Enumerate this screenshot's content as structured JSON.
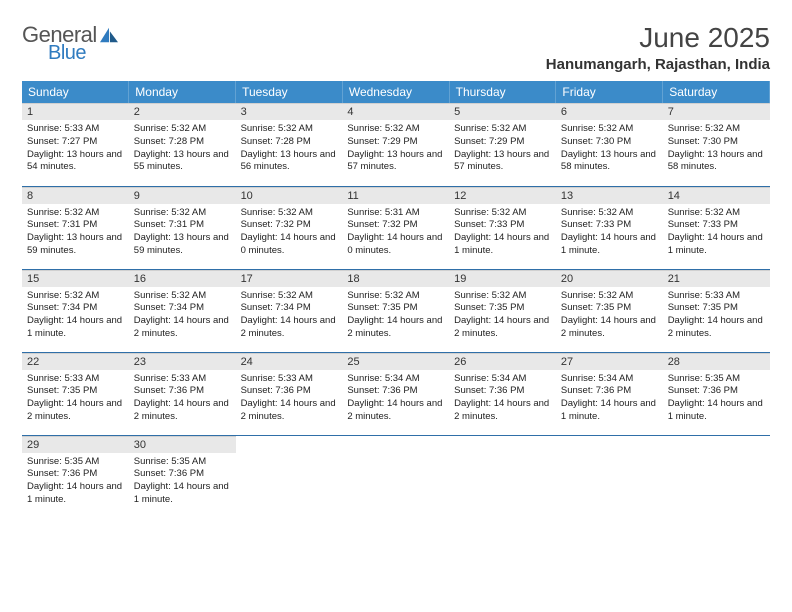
{
  "brand": {
    "word1": "General",
    "word2": "Blue"
  },
  "title": "June 2025",
  "location": "Hanumangarh, Rajasthan, India",
  "colors": {
    "header_bg": "#3b8bc9",
    "row_divider": "#2f6fa8",
    "daynum_bg": "#e8e8e8"
  },
  "weekdays": [
    "Sunday",
    "Monday",
    "Tuesday",
    "Wednesday",
    "Thursday",
    "Friday",
    "Saturday"
  ],
  "days": [
    {
      "n": 1,
      "sr": "5:33 AM",
      "ss": "7:27 PM",
      "dl": "13 hours and 54 minutes."
    },
    {
      "n": 2,
      "sr": "5:32 AM",
      "ss": "7:28 PM",
      "dl": "13 hours and 55 minutes."
    },
    {
      "n": 3,
      "sr": "5:32 AM",
      "ss": "7:28 PM",
      "dl": "13 hours and 56 minutes."
    },
    {
      "n": 4,
      "sr": "5:32 AM",
      "ss": "7:29 PM",
      "dl": "13 hours and 57 minutes."
    },
    {
      "n": 5,
      "sr": "5:32 AM",
      "ss": "7:29 PM",
      "dl": "13 hours and 57 minutes."
    },
    {
      "n": 6,
      "sr": "5:32 AM",
      "ss": "7:30 PM",
      "dl": "13 hours and 58 minutes."
    },
    {
      "n": 7,
      "sr": "5:32 AM",
      "ss": "7:30 PM",
      "dl": "13 hours and 58 minutes."
    },
    {
      "n": 8,
      "sr": "5:32 AM",
      "ss": "7:31 PM",
      "dl": "13 hours and 59 minutes."
    },
    {
      "n": 9,
      "sr": "5:32 AM",
      "ss": "7:31 PM",
      "dl": "13 hours and 59 minutes."
    },
    {
      "n": 10,
      "sr": "5:32 AM",
      "ss": "7:32 PM",
      "dl": "14 hours and 0 minutes."
    },
    {
      "n": 11,
      "sr": "5:31 AM",
      "ss": "7:32 PM",
      "dl": "14 hours and 0 minutes."
    },
    {
      "n": 12,
      "sr": "5:32 AM",
      "ss": "7:33 PM",
      "dl": "14 hours and 1 minute."
    },
    {
      "n": 13,
      "sr": "5:32 AM",
      "ss": "7:33 PM",
      "dl": "14 hours and 1 minute."
    },
    {
      "n": 14,
      "sr": "5:32 AM",
      "ss": "7:33 PM",
      "dl": "14 hours and 1 minute."
    },
    {
      "n": 15,
      "sr": "5:32 AM",
      "ss": "7:34 PM",
      "dl": "14 hours and 1 minute."
    },
    {
      "n": 16,
      "sr": "5:32 AM",
      "ss": "7:34 PM",
      "dl": "14 hours and 2 minutes."
    },
    {
      "n": 17,
      "sr": "5:32 AM",
      "ss": "7:34 PM",
      "dl": "14 hours and 2 minutes."
    },
    {
      "n": 18,
      "sr": "5:32 AM",
      "ss": "7:35 PM",
      "dl": "14 hours and 2 minutes."
    },
    {
      "n": 19,
      "sr": "5:32 AM",
      "ss": "7:35 PM",
      "dl": "14 hours and 2 minutes."
    },
    {
      "n": 20,
      "sr": "5:32 AM",
      "ss": "7:35 PM",
      "dl": "14 hours and 2 minutes."
    },
    {
      "n": 21,
      "sr": "5:33 AM",
      "ss": "7:35 PM",
      "dl": "14 hours and 2 minutes."
    },
    {
      "n": 22,
      "sr": "5:33 AM",
      "ss": "7:35 PM",
      "dl": "14 hours and 2 minutes."
    },
    {
      "n": 23,
      "sr": "5:33 AM",
      "ss": "7:36 PM",
      "dl": "14 hours and 2 minutes."
    },
    {
      "n": 24,
      "sr": "5:33 AM",
      "ss": "7:36 PM",
      "dl": "14 hours and 2 minutes."
    },
    {
      "n": 25,
      "sr": "5:34 AM",
      "ss": "7:36 PM",
      "dl": "14 hours and 2 minutes."
    },
    {
      "n": 26,
      "sr": "5:34 AM",
      "ss": "7:36 PM",
      "dl": "14 hours and 2 minutes."
    },
    {
      "n": 27,
      "sr": "5:34 AM",
      "ss": "7:36 PM",
      "dl": "14 hours and 1 minute."
    },
    {
      "n": 28,
      "sr": "5:35 AM",
      "ss": "7:36 PM",
      "dl": "14 hours and 1 minute."
    },
    {
      "n": 29,
      "sr": "5:35 AM",
      "ss": "7:36 PM",
      "dl": "14 hours and 1 minute."
    },
    {
      "n": 30,
      "sr": "5:35 AM",
      "ss": "7:36 PM",
      "dl": "14 hours and 1 minute."
    }
  ],
  "labels": {
    "sunrise": "Sunrise:",
    "sunset": "Sunset:",
    "daylight": "Daylight:"
  },
  "layout": {
    "first_weekday_index": 0,
    "total_cells": 35
  }
}
